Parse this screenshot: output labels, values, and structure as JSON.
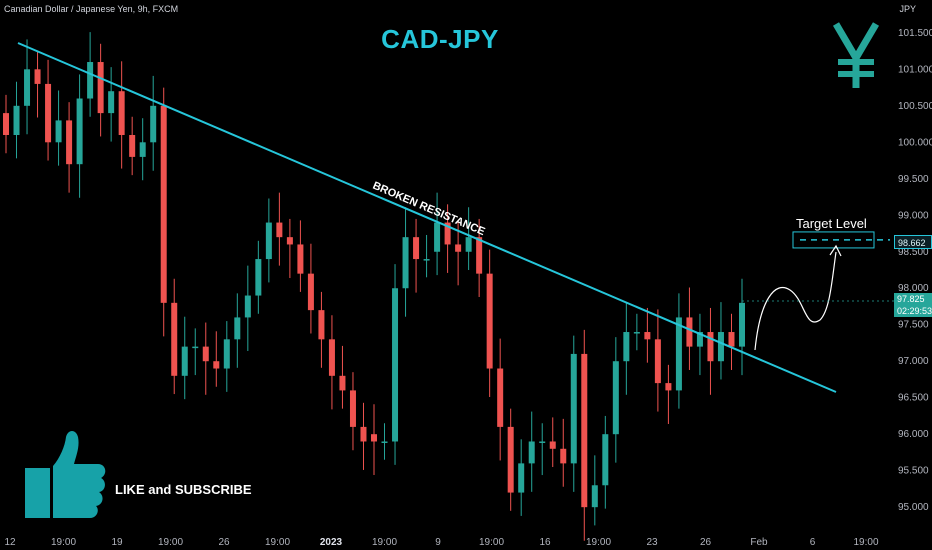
{
  "header": {
    "symbol_text": "Canadian Dollar / Japanese Yen, 9h, FXCM",
    "currency": "JPY",
    "title": "CAD-JPY"
  },
  "annotations": {
    "trendline_label": "BROKEN RESISTANCE",
    "target_label": "Target Level",
    "like_text": "LIKE and SUBSCRIBE",
    "yen_icon": "yen-icon",
    "thumbs_up_icon": "thumbs-up-icon"
  },
  "price_axis": {
    "target_price": "98.662",
    "current_price": "97.825",
    "countdown": "02:29:53"
  },
  "colors": {
    "up": "#26a69a",
    "down": "#ef5350",
    "accent": "#26c6da",
    "price_tag_bg": "#26a69a"
  },
  "chart_data": {
    "type": "candlestick",
    "title": "CAD-JPY",
    "ylabel": "JPY",
    "ylim": [
      94.55,
      101.95
    ],
    "y_ticks": [
      95.0,
      95.5,
      96.0,
      96.5,
      97.0,
      97.5,
      98.0,
      98.5,
      99.0,
      99.5,
      100.0,
      100.5,
      101.0,
      101.5
    ],
    "y_tick_labels": [
      "95.000",
      "95.500",
      "96.000",
      "96.500",
      "97.000",
      "97.500",
      "98.000",
      "98.500",
      "99.000",
      "99.500",
      "100.000",
      "100.500",
      "101.000",
      "101.500"
    ],
    "x_tick_labels": [
      "12",
      "19:00",
      "19",
      "19:00",
      "26",
      "19:00",
      "2023",
      "19:00",
      "9",
      "19:00",
      "16",
      "19:00",
      "23",
      "26",
      "Feb",
      "6",
      "19:00"
    ],
    "grid": false,
    "candles_close": [
      100.1,
      100.5,
      101.0,
      100.8,
      100.0,
      100.3,
      99.7,
      100.6,
      101.1,
      100.4,
      100.7,
      100.1,
      99.8,
      100.0,
      100.5,
      97.8,
      96.8,
      97.2,
      97.2,
      97.0,
      96.9,
      97.3,
      97.6,
      97.9,
      98.4,
      98.9,
      98.7,
      98.6,
      98.2,
      97.7,
      97.3,
      96.8,
      96.6,
      96.1,
      95.9,
      95.9,
      95.9,
      98.0,
      98.7,
      98.4,
      98.4,
      98.9,
      98.6,
      98.5,
      98.7,
      98.2,
      96.9,
      96.1,
      95.2,
      95.6,
      95.9,
      95.9,
      95.8,
      95.6,
      97.1,
      95.0,
      95.3,
      96.0,
      97.0,
      97.4,
      97.4,
      97.3,
      96.7,
      96.6,
      97.6,
      97.2,
      97.4,
      97.0,
      97.4,
      97.2,
      97.8
    ],
    "candles_open": [
      100.4,
      100.1,
      100.5,
      101.0,
      100.8,
      100.0,
      100.3,
      99.7,
      100.6,
      101.1,
      100.4,
      100.7,
      100.1,
      99.8,
      100.0,
      100.5,
      97.8,
      96.8,
      97.2,
      97.2,
      97.0,
      96.9,
      97.3,
      97.6,
      97.9,
      98.4,
      98.9,
      98.7,
      98.6,
      98.2,
      97.7,
      97.3,
      96.8,
      96.6,
      96.1,
      96.0,
      95.9,
      95.9,
      98.0,
      98.7,
      98.4,
      98.5,
      98.9,
      98.6,
      98.5,
      98.7,
      98.2,
      96.9,
      96.1,
      95.2,
      95.6,
      95.9,
      95.9,
      95.8,
      95.6,
      97.1,
      95.0,
      95.3,
      96.0,
      97.0,
      97.4,
      97.4,
      97.3,
      96.7,
      96.6,
      97.6,
      97.2,
      97.4,
      97.0,
      97.4,
      97.2
    ],
    "trendline": {
      "label": "BROKEN RESISTANCE"
    },
    "target_level": 98.662,
    "last_price": 97.825
  }
}
